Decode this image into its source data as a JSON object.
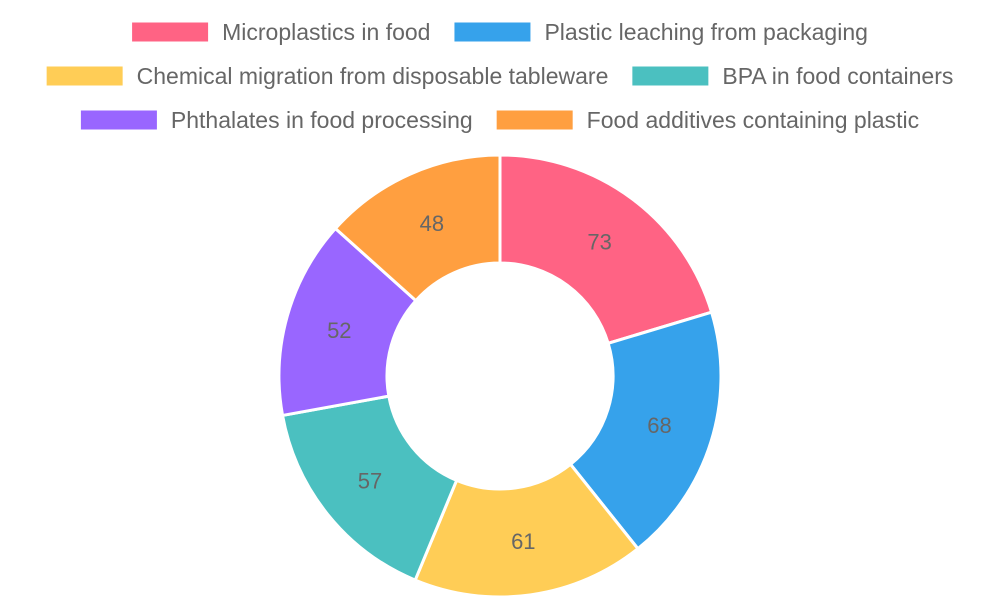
{
  "chart_data": {
    "type": "pie",
    "subtype": "doughnut",
    "legend_position": "top",
    "categories": [
      "Microplastics in food",
      "Plastic leaching from packaging",
      "Chemical migration from disposable tableware",
      "BPA in food containers",
      "Phthalates in food processing",
      "Food additives containing plastic"
    ],
    "values": [
      73,
      68,
      61,
      57,
      52,
      48
    ],
    "colors": [
      "#ff6384",
      "#36a2eb",
      "#ffcd56",
      "#4bc0c0",
      "#9966ff",
      "#ff9f40"
    ]
  }
}
